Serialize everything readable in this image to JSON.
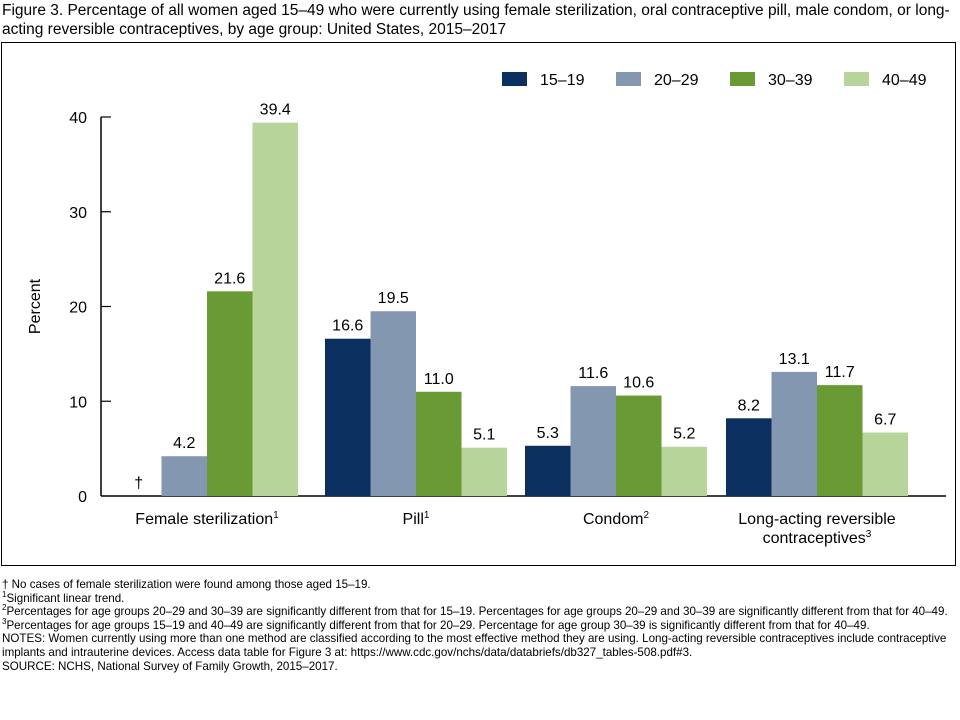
{
  "title": "Figure 3. Percentage of all women aged 15–49 who were currently using female sterilization, oral contraceptive pill, male condom, or long-acting reversible contraceptives, by age group: United States, 2015–2017",
  "chart_data": {
    "type": "bar",
    "ylabel": "Percent",
    "ylim": [
      0,
      40
    ],
    "yticks": [
      0,
      10,
      20,
      30,
      40
    ],
    "grid": false,
    "legend_position": "top-right",
    "categories": [
      {
        "lines": [
          "Female sterilization"
        ],
        "sup": "1"
      },
      {
        "lines": [
          "Pill"
        ],
        "sup": "1"
      },
      {
        "lines": [
          "Condom"
        ],
        "sup": "2"
      },
      {
        "lines": [
          "Long-acting reversible",
          "contraceptives"
        ],
        "sup": "3"
      }
    ],
    "series": [
      {
        "name": "15–19",
        "color": "#0b2f5e",
        "values": [
          null,
          16.6,
          5.3,
          8.2
        ],
        "labels": [
          "†",
          "16.6",
          "5.3",
          "8.2"
        ]
      },
      {
        "name": "20–29",
        "color": "#8497b0",
        "values": [
          4.2,
          19.5,
          11.6,
          13.1
        ],
        "labels": [
          "4.2",
          "19.5",
          "11.6",
          "13.1"
        ]
      },
      {
        "name": "30–39",
        "color": "#6a9a33",
        "values": [
          21.6,
          11.0,
          10.6,
          11.7
        ],
        "labels": [
          "21.6",
          "11.0",
          "10.6",
          "11.7"
        ]
      },
      {
        "name": "40–49",
        "color": "#b7d49b",
        "values": [
          39.4,
          5.1,
          5.2,
          6.7
        ],
        "labels": [
          "39.4",
          "5.1",
          "5.2",
          "6.7"
        ]
      }
    ]
  },
  "footnotes": [
    {
      "sup": "",
      "text": "† No cases of female sterilization were found among those aged 15–19."
    },
    {
      "sup": "1",
      "text": "Significant linear trend."
    },
    {
      "sup": "2",
      "text": "Percentages for age groups 20–29 and 30–39 are significantly different from that for 15–19. Percentages for age groups 20–29 and 30–39 are significantly different from that for 40–49."
    },
    {
      "sup": "3",
      "text": "Percentages for age groups 15–19 and 40–49 are significantly different from that for 20–29. Percentage for age group 30–39 is significantly different from that for 40–49."
    }
  ],
  "notes": "NOTES: Women currently using more than one method are classified according to the most effective method they are using. Long-acting reversible contraceptives include contraceptive implants and intrauterine devices. Access data table for Figure 3 at: https://www.cdc.gov/nchs/data/databriefs/db327_tables-508.pdf#3.",
  "source": "SOURCE: NCHS, National Survey of Family Growth, 2015–2017."
}
